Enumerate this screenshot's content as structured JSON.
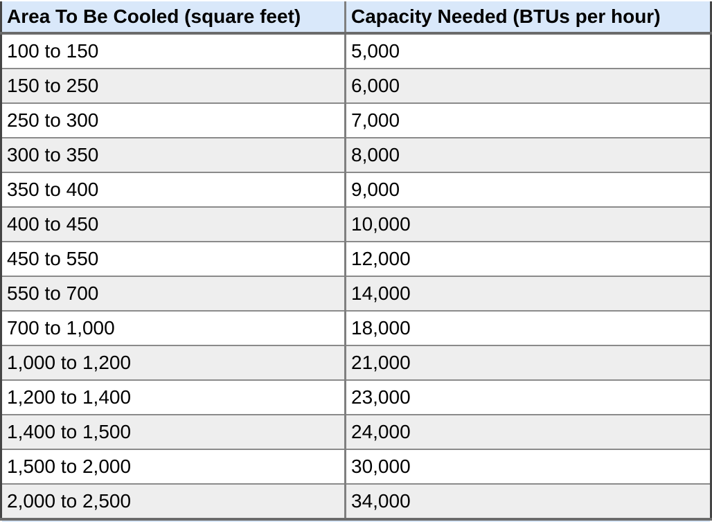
{
  "table": {
    "name": "air-conditioner-btu-capacity-table",
    "columns": [
      "Area To Be Cooled (square feet)",
      "Capacity Needed (BTUs per hour)"
    ],
    "rows": [
      {
        "area": "100 to 150",
        "capacity": "5,000"
      },
      {
        "area": "150 to 250",
        "capacity": "6,000"
      },
      {
        "area": "250 to 300",
        "capacity": "7,000"
      },
      {
        "area": "300 to 350",
        "capacity": "8,000"
      },
      {
        "area": "350 to 400",
        "capacity": "9,000"
      },
      {
        "area": "400 to 450",
        "capacity": "10,000"
      },
      {
        "area": "450 to 550",
        "capacity": "12,000"
      },
      {
        "area": "550 to 700",
        "capacity": "14,000"
      },
      {
        "area": "700 to 1,000",
        "capacity": "18,000"
      },
      {
        "area": "1,000 to 1,200",
        "capacity": "21,000"
      },
      {
        "area": "1,200 to 1,400",
        "capacity": "23,000"
      },
      {
        "area": "1,400 to 1,500",
        "capacity": "24,000"
      },
      {
        "area": "1,500 to 2,000",
        "capacity": "30,000"
      },
      {
        "area": "2,000 to 2,500",
        "capacity": "34,000"
      }
    ]
  },
  "colors": {
    "header_bg": "#d9e8fa",
    "alt_row_bg": "#eeeeee",
    "row_border": "#8a8a8a",
    "thick_border": "#6b6b6b",
    "outer_border": "#454545",
    "divider": "#7f7f7f",
    "text": "#000000"
  }
}
